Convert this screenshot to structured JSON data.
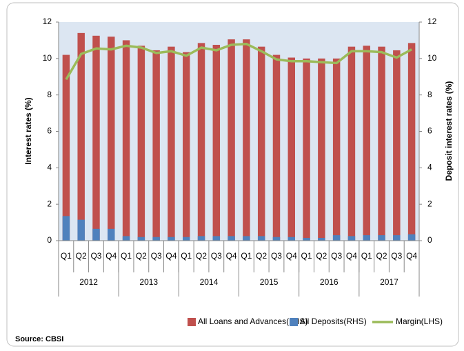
{
  "chart_data": {
    "type": "bar",
    "ylabel": "Interest rates (%)",
    "y2label": "Deposit  interest rates (%)",
    "source": "Source: CBSI",
    "categories": [
      "Q1",
      "Q2",
      "Q3",
      "Q4",
      "Q1",
      "Q2",
      "Q3",
      "Q4",
      "Q1",
      "Q2",
      "Q3",
      "Q4",
      "Q1",
      "Q2",
      "Q3",
      "Q4",
      "Q1",
      "Q2",
      "Q3",
      "Q4",
      "Q1",
      "Q2",
      "Q3",
      "Q4"
    ],
    "groups": [
      "2012",
      "2013",
      "2014",
      "2015",
      "2016",
      "2017"
    ],
    "series": [
      {
        "name": "All Loans and Advances(LHS)",
        "type": "bar",
        "color": "#c0504d",
        "values": [
          10.2,
          11.4,
          11.25,
          11.2,
          11.0,
          10.7,
          10.45,
          10.65,
          10.35,
          10.85,
          10.75,
          11.05,
          11.05,
          10.65,
          10.2,
          10.05,
          10.0,
          10.0,
          10.0,
          10.65,
          10.7,
          10.65,
          10.45,
          10.85
        ]
      },
      {
        "name": "All Deposits(RHS)",
        "type": "bar",
        "axis": "y2",
        "color": "#4f81bd",
        "values": [
          1.35,
          1.15,
          0.65,
          0.65,
          0.25,
          0.2,
          0.2,
          0.2,
          0.2,
          0.25,
          0.25,
          0.25,
          0.25,
          0.25,
          0.2,
          0.2,
          0.15,
          0.15,
          0.3,
          0.25,
          0.3,
          0.3,
          0.3,
          0.35
        ]
      },
      {
        "name": "Margin(LHS)",
        "type": "line",
        "color": "#9bbb59",
        "values": [
          8.85,
          10.25,
          10.55,
          10.5,
          10.7,
          10.6,
          10.3,
          10.4,
          10.15,
          10.6,
          10.45,
          10.75,
          10.8,
          10.4,
          9.95,
          9.85,
          9.85,
          9.8,
          9.75,
          10.4,
          10.4,
          10.35,
          10.05,
          10.5
        ]
      }
    ],
    "ylim": [
      0,
      12
    ],
    "yticks": [
      0,
      2,
      4,
      6,
      8,
      10,
      12
    ],
    "y2lim": [
      0,
      12
    ],
    "y2ticks": [
      0,
      2,
      4,
      6,
      8,
      10,
      12
    ],
    "legend": "bottom"
  }
}
